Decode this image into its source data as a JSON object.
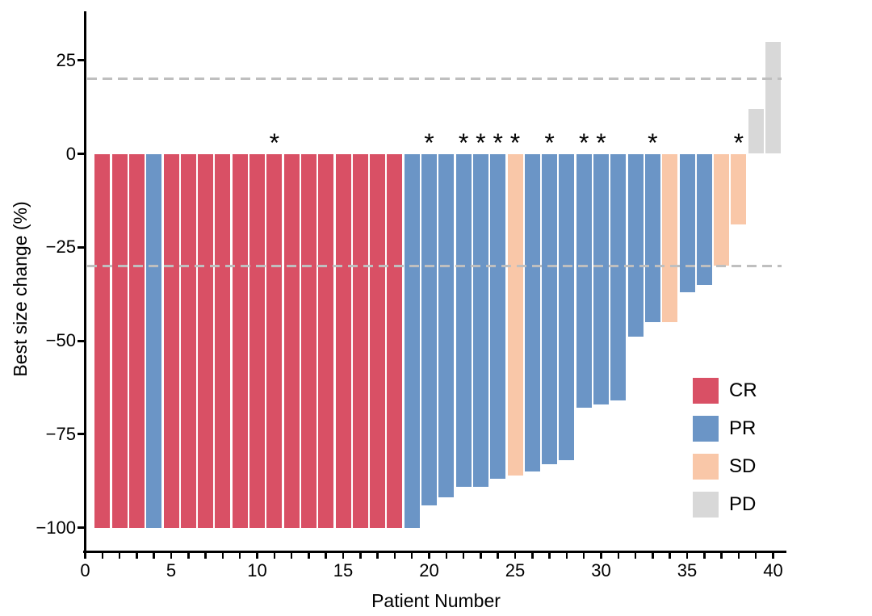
{
  "figure": {
    "background": "#ffffff",
    "star_symbol": "*",
    "axis_color": "#000000",
    "text_color": "#000000"
  },
  "chart_data": {
    "type": "bar",
    "subtype": "waterfall",
    "title": "",
    "xlabel": "Patient Number",
    "ylabel": "Best size change (%)",
    "xlim": [
      0,
      41
    ],
    "ylim": [
      -107,
      38
    ],
    "grid": false,
    "x_major_ticks": [
      {
        "value": 0,
        "label": "0"
      },
      {
        "value": 5,
        "label": "5"
      },
      {
        "value": 10,
        "label": "10"
      },
      {
        "value": 15,
        "label": "15"
      },
      {
        "value": 20,
        "label": "20"
      },
      {
        "value": 25,
        "label": "25"
      },
      {
        "value": 30,
        "label": "30"
      },
      {
        "value": 35,
        "label": "35"
      },
      {
        "value": 40,
        "label": "40"
      }
    ],
    "x_minor_tick_step": 1,
    "x_minor_tick_range": [
      0,
      40
    ],
    "y_ticks": [
      {
        "value": 25,
        "label": "25"
      },
      {
        "value": 0,
        "label": "0"
      },
      {
        "value": -25,
        "label": "−25"
      },
      {
        "value": -50,
        "label": "−50"
      },
      {
        "value": -75,
        "label": "−75"
      },
      {
        "value": -100,
        "label": "−100"
      }
    ],
    "reference_lines": [
      {
        "value": 20,
        "style": "dashed",
        "color": "#BFBFBF"
      },
      {
        "value": -30,
        "style": "dashed",
        "color": "#BFBFBF"
      }
    ],
    "legend": {
      "position": "inside-bottom-right",
      "items": [
        {
          "code": "CR",
          "label": "CR",
          "color": "#D95065"
        },
        {
          "code": "PR",
          "label": "PR",
          "color": "#6B95C6"
        },
        {
          "code": "SD",
          "label": "SD",
          "color": "#F9C7A8"
        },
        {
          "code": "PD",
          "label": "PD",
          "color": "#D8D8D8"
        }
      ]
    },
    "patients": [
      {
        "patient": 1,
        "value": -100,
        "response": "CR",
        "star": false
      },
      {
        "patient": 2,
        "value": -100,
        "response": "CR",
        "star": false
      },
      {
        "patient": 3,
        "value": -100,
        "response": "CR",
        "star": false
      },
      {
        "patient": 4,
        "value": -100,
        "response": "PR",
        "star": false
      },
      {
        "patient": 5,
        "value": -100,
        "response": "CR",
        "star": false
      },
      {
        "patient": 6,
        "value": -100,
        "response": "CR",
        "star": false
      },
      {
        "patient": 7,
        "value": -100,
        "response": "CR",
        "star": false
      },
      {
        "patient": 8,
        "value": -100,
        "response": "CR",
        "star": false
      },
      {
        "patient": 9,
        "value": -100,
        "response": "CR",
        "star": false
      },
      {
        "patient": 10,
        "value": -100,
        "response": "CR",
        "star": false
      },
      {
        "patient": 11,
        "value": -100,
        "response": "CR",
        "star": true
      },
      {
        "patient": 12,
        "value": -100,
        "response": "CR",
        "star": false
      },
      {
        "patient": 13,
        "value": -100,
        "response": "CR",
        "star": false
      },
      {
        "patient": 14,
        "value": -100,
        "response": "CR",
        "star": false
      },
      {
        "patient": 15,
        "value": -100,
        "response": "CR",
        "star": false
      },
      {
        "patient": 16,
        "value": -100,
        "response": "CR",
        "star": false
      },
      {
        "patient": 17,
        "value": -100,
        "response": "CR",
        "star": false
      },
      {
        "patient": 18,
        "value": -100,
        "response": "CR",
        "star": false
      },
      {
        "patient": 19,
        "value": -100,
        "response": "PR",
        "star": false
      },
      {
        "patient": 20,
        "value": -94,
        "response": "PR",
        "star": true
      },
      {
        "patient": 21,
        "value": -92,
        "response": "PR",
        "star": false
      },
      {
        "patient": 22,
        "value": -89,
        "response": "PR",
        "star": true
      },
      {
        "patient": 23,
        "value": -89,
        "response": "PR",
        "star": true
      },
      {
        "patient": 24,
        "value": -87,
        "response": "PR",
        "star": true
      },
      {
        "patient": 25,
        "value": -86,
        "response": "SD",
        "star": true
      },
      {
        "patient": 26,
        "value": -85,
        "response": "PR",
        "star": false
      },
      {
        "patient": 27,
        "value": -83,
        "response": "PR",
        "star": true
      },
      {
        "patient": 28,
        "value": -82,
        "response": "PR",
        "star": false
      },
      {
        "patient": 29,
        "value": -68,
        "response": "PR",
        "star": true
      },
      {
        "patient": 30,
        "value": -67,
        "response": "PR",
        "star": true
      },
      {
        "patient": 31,
        "value": -66,
        "response": "PR",
        "star": false
      },
      {
        "patient": 32,
        "value": -49,
        "response": "PR",
        "star": false
      },
      {
        "patient": 33,
        "value": -45,
        "response": "PR",
        "star": true
      },
      {
        "patient": 34,
        "value": -45,
        "response": "SD",
        "star": false
      },
      {
        "patient": 35,
        "value": -37,
        "response": "PR",
        "star": false
      },
      {
        "patient": 36,
        "value": -35,
        "response": "PR",
        "star": false
      },
      {
        "patient": 37,
        "value": -30,
        "response": "SD",
        "star": false
      },
      {
        "patient": 38,
        "value": -19,
        "response": "SD",
        "star": true
      },
      {
        "patient": 39,
        "value": 12,
        "response": "PD",
        "star": false
      },
      {
        "patient": 40,
        "value": 30,
        "response": "PD",
        "star": false
      }
    ]
  }
}
